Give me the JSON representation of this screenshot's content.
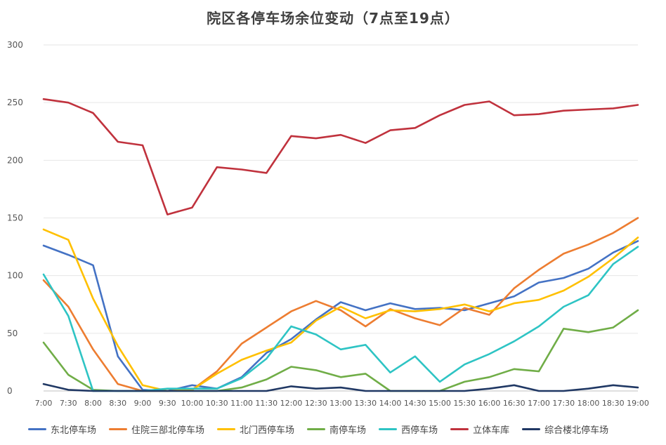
{
  "chart_data": {
    "type": "line",
    "title": "院区各停车场余位变动（7点至19点）",
    "xlabel": "",
    "ylabel": "",
    "ylim": [
      0,
      300
    ],
    "yticks": [
      0,
      50,
      100,
      150,
      200,
      250,
      300
    ],
    "ytick_labels": [
      "0",
      "50",
      "100",
      "150",
      "200",
      "250",
      "300"
    ],
    "grid": true,
    "legend_position": "bottom",
    "x": [
      "7:00",
      "7:30",
      "8:00",
      "8:30",
      "9:00",
      "9:30",
      "10:00",
      "10:30",
      "11:00",
      "11:30",
      "12:00",
      "12:30",
      "13:00",
      "13:30",
      "14:00",
      "14:30",
      "15:00",
      "15:30",
      "16:00",
      "16:30",
      "17:00",
      "17:30",
      "18:00",
      "18:30",
      "19:00"
    ],
    "series": [
      {
        "name": "东北停车场",
        "color": "#4472C4",
        "values": [
          126,
          118,
          109,
          30,
          1,
          0,
          5,
          2,
          12,
          33,
          45,
          62,
          77,
          70,
          76,
          71,
          72,
          70,
          76,
          82,
          94,
          98,
          106,
          120,
          130
        ]
      },
      {
        "name": "住院三部北停车场",
        "color": "#ED7D31",
        "values": [
          96,
          73,
          36,
          6,
          0,
          0,
          1,
          17,
          41,
          55,
          69,
          78,
          70,
          56,
          71,
          63,
          57,
          72,
          66,
          89,
          105,
          119,
          127,
          137,
          150
        ]
      },
      {
        "name": "北门西停车场",
        "color": "#FFC000",
        "values": [
          140,
          131,
          80,
          39,
          5,
          0,
          1,
          15,
          27,
          35,
          42,
          61,
          73,
          63,
          70,
          69,
          71,
          75,
          69,
          76,
          79,
          87,
          99,
          115,
          133
        ]
      },
      {
        "name": "南停车场",
        "color": "#70AD47",
        "values": [
          42,
          14,
          1,
          0,
          0,
          0,
          0,
          0,
          3,
          10,
          21,
          18,
          12,
          15,
          0,
          0,
          0,
          8,
          12,
          19,
          17,
          54,
          51,
          55,
          70
        ]
      },
      {
        "name": "西停车场",
        "color": "#2EC4C4",
        "values": [
          101,
          65,
          0,
          0,
          0,
          2,
          2,
          2,
          11,
          28,
          56,
          49,
          36,
          40,
          16,
          30,
          8,
          23,
          32,
          43,
          56,
          73,
          83,
          110,
          125
        ]
      },
      {
        "name": "立体车库",
        "color": "#C0323D",
        "values": [
          253,
          250,
          241,
          216,
          213,
          153,
          159,
          194,
          192,
          189,
          221,
          219,
          222,
          215,
          226,
          228,
          239,
          248,
          251,
          239,
          240,
          243,
          244,
          245,
          248
        ]
      },
      {
        "name": "综合楼北停车场",
        "color": "#203864",
        "values": [
          6,
          1,
          0,
          0,
          0,
          0,
          0,
          0,
          0,
          0,
          4,
          2,
          3,
          0,
          0,
          0,
          0,
          0,
          2,
          5,
          0,
          0,
          2,
          5,
          3
        ]
      }
    ]
  }
}
